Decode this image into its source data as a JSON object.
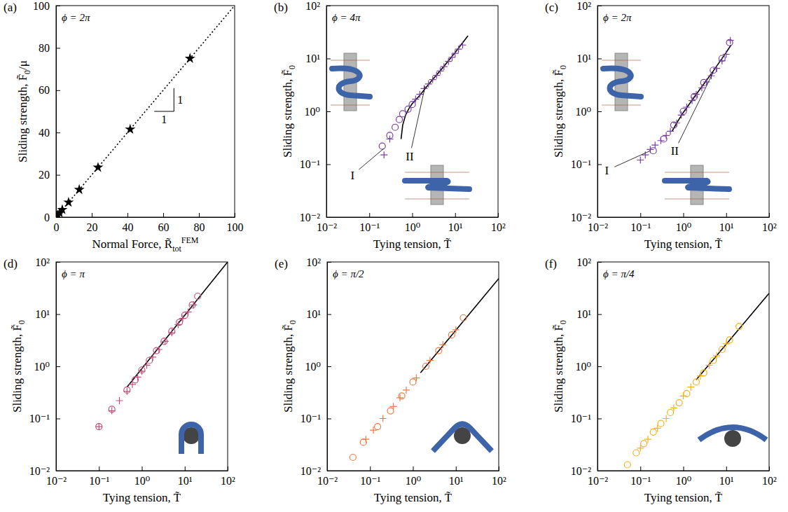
{
  "chart_data": [
    {
      "type": "scatter",
      "panel": "(a)",
      "annotation": "ϕ = 2π",
      "xlabel": [
        {
          "text": "Normal Force, R̃"
        },
        {
          "sub": "tot"
        },
        {
          "sup": "FEM"
        }
      ],
      "ylabel": [
        {
          "text": "Sliding strength, F̃"
        },
        {
          "sub": "0"
        },
        {
          "text": "/μ"
        }
      ],
      "xlim": [
        0,
        100
      ],
      "ylim": [
        0,
        100
      ],
      "xticks": [
        0,
        20,
        40,
        60,
        80,
        100
      ],
      "yticks": [
        0,
        20,
        40,
        60,
        80,
        100
      ],
      "slope": {
        "x": [
          55,
          66
        ],
        "y": [
          50,
          61
        ],
        "labels": [
          "1",
          "1"
        ]
      },
      "series": [
        {
          "type": "line",
          "line_style": "dotted",
          "color": "#000000",
          "x": [
            0,
            100
          ],
          "values": [
            0,
            100
          ]
        },
        {
          "type": "scatter",
          "marker": "star",
          "color": "#000000",
          "x": [
            0.5,
            1,
            2,
            3.5,
            7,
            13,
            23.5,
            41.5,
            75
          ],
          "values": [
            0.5,
            1,
            2,
            3.5,
            7,
            13,
            23.5,
            41.5,
            75
          ]
        }
      ]
    },
    {
      "type": "scatter",
      "panel": "(b)",
      "annotation": "ϕ = 4π",
      "log": true,
      "xlabel": [
        {
          "text": "Tying tension, T̃"
        }
      ],
      "ylabel": [
        {
          "text": "Sliding strength, F̃"
        },
        {
          "sub": "0"
        }
      ],
      "xlim": [
        0.01,
        100
      ],
      "ylim": [
        0.01,
        100
      ],
      "xticks": [
        {
          "value": 0.01,
          "label": "10⁻²"
        },
        {
          "value": 0.1,
          "label": "10⁻¹"
        },
        {
          "value": 1,
          "label": "10⁰"
        },
        {
          "value": 10,
          "label": "10¹"
        },
        {
          "value": 100,
          "label": "10²"
        }
      ],
      "yticks": [
        {
          "value": 0.01,
          "label": "10⁻²"
        },
        {
          "value": 0.1,
          "label": "10⁻¹"
        },
        {
          "value": 1,
          "label": "10⁰"
        },
        {
          "value": 10,
          "label": "10¹"
        },
        {
          "value": 100,
          "label": "10²"
        }
      ],
      "annotations": [
        {
          "text": "I",
          "x": 0.22,
          "y": 0.2
        },
        {
          "text": "II",
          "x": 2,
          "y": 3
        }
      ],
      "series": [
        {
          "type": "line",
          "line_style": "solid",
          "color": "#000000",
          "x": [
            0.55,
            0.6,
            0.7,
            0.85,
            1,
            1.5,
            2,
            3,
            5,
            10,
            20
          ],
          "values": [
            0.3,
            0.55,
            0.85,
            1.15,
            1.4,
            2.0,
            2.7,
            4.0,
            6.5,
            13,
            27
          ]
        },
        {
          "type": "scatter",
          "marker": "circle",
          "color": "#7b3fa0",
          "x": [
            0.2,
            0.3,
            0.4,
            0.5,
            0.6,
            0.8,
            1.0
          ],
          "values": [
            0.22,
            0.35,
            0.5,
            0.7,
            0.9,
            1.1,
            1.35
          ]
        },
        {
          "type": "scatter",
          "marker": "plus",
          "color": "#7b3fa0",
          "x": [
            0.22,
            0.3,
            1.2,
            1.5,
            1.9,
            2.4,
            3,
            3.7,
            4.5,
            5.5,
            7,
            8.5,
            10,
            12,
            15
          ],
          "values": [
            0.15,
            0.3,
            1.7,
            2.1,
            2.7,
            3.3,
            4.0,
            4.8,
            5.8,
            7,
            8.8,
            10.5,
            12.5,
            15,
            18
          ]
        }
      ]
    },
    {
      "type": "scatter",
      "panel": "(c)",
      "annotation": "ϕ = 2π",
      "log": true,
      "xlabel": [
        {
          "text": "Tying tension, T̃"
        }
      ],
      "ylabel": [
        {
          "text": "Sliding strength, F̃"
        },
        {
          "sub": "0"
        }
      ],
      "xlim": [
        0.01,
        100
      ],
      "ylim": [
        0.01,
        100
      ],
      "xticks": [
        {
          "value": 0.01,
          "label": "10⁻²"
        },
        {
          "value": 0.1,
          "label": "10⁻¹"
        },
        {
          "value": 1,
          "label": "10⁰"
        },
        {
          "value": 10,
          "label": "10¹"
        },
        {
          "value": 100,
          "label": "10²"
        }
      ],
      "yticks": [
        {
          "value": 0.01,
          "label": "10⁻²"
        },
        {
          "value": 0.1,
          "label": "10⁻¹"
        },
        {
          "value": 1,
          "label": "10⁰"
        },
        {
          "value": 10,
          "label": "10¹"
        },
        {
          "value": 100,
          "label": "10²"
        }
      ],
      "annotations": [
        {
          "text": "I",
          "x": 0.17,
          "y": 0.18
        },
        {
          "text": "II",
          "x": 5,
          "y": 5.5
        }
      ],
      "series": [
        {
          "type": "line",
          "line_style": "solid",
          "color": "#000000",
          "x": [
            0.55,
            0.7,
            1,
            2,
            5,
            10,
            13
          ],
          "values": [
            0.42,
            0.6,
            0.95,
            2.1,
            5.8,
            13,
            18
          ]
        },
        {
          "type": "scatter",
          "marker": "circle",
          "color": "#7b3fa0",
          "x": [
            0.2,
            0.35,
            0.6,
            1,
            1.8,
            3,
            5,
            8,
            12
          ],
          "values": [
            0.18,
            0.3,
            0.55,
            1.0,
            1.9,
            3.5,
            6,
            10,
            20
          ]
        },
        {
          "type": "scatter",
          "marker": "plus",
          "color": "#7b3fa0",
          "x": [
            0.1,
            0.13,
            0.17,
            0.22,
            0.3,
            0.4,
            0.5,
            0.7,
            0.9,
            1.2,
            1.6,
            2,
            2.7,
            3.5,
            4.5,
            6,
            8,
            10,
            12.5
          ],
          "values": [
            0.12,
            0.15,
            0.19,
            0.23,
            0.28,
            0.35,
            0.42,
            0.6,
            0.85,
            1.2,
            1.6,
            2.1,
            2.8,
            3.6,
            4.7,
            6.5,
            9,
            12,
            22
          ]
        }
      ]
    },
    {
      "type": "scatter",
      "panel": "(d)",
      "annotation": "ϕ = π",
      "log": true,
      "xlabel": [
        {
          "text": "Tying tension, T̃"
        }
      ],
      "ylabel": [
        {
          "text": "Sliding strength, F̃"
        },
        {
          "sub": "0"
        }
      ],
      "xlim": [
        0.01,
        100
      ],
      "ylim": [
        0.01,
        100
      ],
      "xticks": [
        {
          "value": 0.01,
          "label": "10⁻²"
        },
        {
          "value": 0.1,
          "label": "10⁻¹"
        },
        {
          "value": 1,
          "label": "10⁰"
        },
        {
          "value": 10,
          "label": "10¹"
        },
        {
          "value": 100,
          "label": "10²"
        }
      ],
      "yticks": [
        {
          "value": 0.01,
          "label": "10⁻²"
        },
        {
          "value": 0.1,
          "label": "10⁻¹"
        },
        {
          "value": 1,
          "label": "10⁰"
        },
        {
          "value": 10,
          "label": "10¹"
        },
        {
          "value": 100,
          "label": "10²"
        }
      ],
      "series": [
        {
          "type": "line",
          "line_style": "solid",
          "color": "#000000",
          "x": [
            0.45,
            100
          ],
          "values": [
            0.4,
            100
          ]
        },
        {
          "type": "scatter",
          "marker": "circle",
          "color": "#c2507e",
          "x": [
            0.1,
            0.2,
            0.45,
            0.7,
            1,
            1.5,
            2.2,
            3.3,
            5,
            7.5,
            10,
            15,
            20
          ],
          "values": [
            0.07,
            0.15,
            0.35,
            0.55,
            0.85,
            1.3,
            2,
            3,
            4.7,
            7,
            9.5,
            15,
            22
          ]
        },
        {
          "type": "scatter",
          "marker": "plus",
          "color": "#c2507e",
          "x": [
            0.1,
            0.2,
            0.3,
            0.45,
            0.6,
            0.8,
            1,
            1.3,
            1.8,
            2.5,
            3.5,
            5,
            7,
            9,
            12,
            16
          ],
          "values": [
            0.07,
            0.14,
            0.22,
            0.33,
            0.45,
            0.62,
            0.8,
            1.05,
            1.5,
            2.1,
            3,
            4.4,
            6.3,
            8.3,
            11,
            15
          ]
        }
      ]
    },
    {
      "type": "scatter",
      "panel": "(e)",
      "annotation": "ϕ = π/2",
      "log": true,
      "xlabel": [
        {
          "text": "Tying tension, T̃"
        }
      ],
      "ylabel": [
        {
          "text": "Sliding strength, F̃"
        },
        {
          "sub": "0"
        }
      ],
      "xlim": [
        0.01,
        100
      ],
      "ylim": [
        0.01,
        100
      ],
      "xticks": [
        {
          "value": 0.01,
          "label": "10⁻²"
        },
        {
          "value": 0.1,
          "label": "10⁻¹"
        },
        {
          "value": 1,
          "label": "10⁰"
        },
        {
          "value": 10,
          "label": "10¹"
        },
        {
          "value": 100,
          "label": "10²"
        }
      ],
      "yticks": [
        {
          "value": 0.01,
          "label": "10⁻²"
        },
        {
          "value": 0.1,
          "label": "10⁻¹"
        },
        {
          "value": 1,
          "label": "10⁰"
        },
        {
          "value": 10,
          "label": "10¹"
        },
        {
          "value": 100,
          "label": "10²"
        }
      ],
      "series": [
        {
          "type": "line",
          "line_style": "solid",
          "color": "#000000",
          "x": [
            1.5,
            100
          ],
          "values": [
            0.75,
            48
          ]
        },
        {
          "type": "scatter",
          "marker": "circle",
          "color": "#f07b45",
          "x": [
            0.04,
            0.07,
            0.15,
            0.3,
            0.55,
            1,
            2,
            4,
            8,
            15
          ],
          "values": [
            0.018,
            0.035,
            0.07,
            0.14,
            0.27,
            0.5,
            1,
            2,
            4,
            8.5
          ]
        },
        {
          "type": "scatter",
          "marker": "plus",
          "color": "#f07b45",
          "x": [
            0.08,
            0.12,
            0.2,
            0.35,
            0.5,
            0.7,
            1.2,
            2.5,
            5,
            10
          ],
          "values": [
            0.04,
            0.06,
            0.1,
            0.17,
            0.25,
            0.35,
            0.6,
            1.3,
            2.6,
            5
          ]
        }
      ]
    },
    {
      "type": "scatter",
      "panel": "(f)",
      "annotation": "ϕ = π/4",
      "log": true,
      "xlabel": [
        {
          "text": "Tying tension, T̃"
        }
      ],
      "ylabel": [
        {
          "text": "Sliding strength, F̃"
        },
        {
          "sub": "0"
        }
      ],
      "xlim": [
        0.01,
        100
      ],
      "ylim": [
        0.01,
        100
      ],
      "xticks": [
        {
          "value": 0.01,
          "label": "10⁻²"
        },
        {
          "value": 0.1,
          "label": "10⁻¹"
        },
        {
          "value": 1,
          "label": "10⁰"
        },
        {
          "value": 10,
          "label": "10¹"
        },
        {
          "value": 100,
          "label": "10²"
        }
      ],
      "yticks": [
        {
          "value": 0.01,
          "label": "10⁻²"
        },
        {
          "value": 0.1,
          "label": "10⁻¹"
        },
        {
          "value": 1,
          "label": "10⁰"
        },
        {
          "value": 10,
          "label": "10¹"
        },
        {
          "value": 100,
          "label": "10²"
        }
      ],
      "series": [
        {
          "type": "line",
          "line_style": "solid",
          "color": "#000000",
          "x": [
            2,
            100
          ],
          "values": [
            0.55,
            25
          ]
        },
        {
          "type": "scatter",
          "marker": "circle",
          "color": "#f2b21a",
          "x": [
            0.05,
            0.08,
            0.12,
            0.2,
            0.3,
            0.5,
            0.8,
            1.2,
            2,
            3,
            5,
            8,
            12,
            20
          ],
          "values": [
            0.013,
            0.022,
            0.033,
            0.055,
            0.08,
            0.13,
            0.2,
            0.3,
            0.5,
            0.75,
            1.3,
            2.1,
            3.2,
            5.8
          ]
        },
        {
          "type": "scatter",
          "marker": "plus",
          "color": "#f2b21a",
          "x": [
            0.1,
            0.15,
            0.25,
            0.4,
            0.6,
            1,
            1.5,
            2.5,
            4,
            6,
            10
          ],
          "values": [
            0.027,
            0.04,
            0.065,
            0.1,
            0.16,
            0.27,
            0.4,
            0.65,
            1.05,
            1.6,
            2.7
          ]
        }
      ]
    }
  ]
}
